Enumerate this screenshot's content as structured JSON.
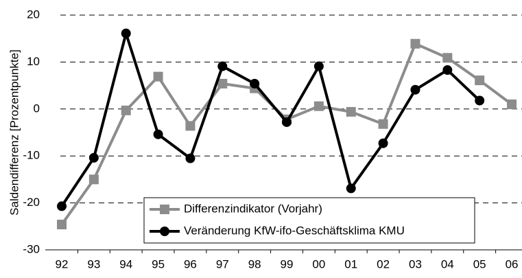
{
  "chart_data": {
    "type": "line",
    "y_label": "Saldendifferenz [Prozentpunkte]",
    "categories": [
      "92",
      "93",
      "94",
      "95",
      "96",
      "97",
      "98",
      "99",
      "00",
      "01",
      "02",
      "03",
      "04",
      "05",
      "06"
    ],
    "series": [
      {
        "name": "Differenzindikator (Vorjahr)",
        "color": "#8c8c8c",
        "marker": "square",
        "values": [
          -24.6,
          -15,
          -0.3,
          6.9,
          -3.6,
          5.4,
          4.4,
          -2.2,
          0.6,
          -0.6,
          -3.2,
          13.9,
          10.9,
          6.1,
          1.0
        ]
      },
      {
        "name": "Veränderung KfW-ifo-Geschäftsklima KMU",
        "color": "#000000",
        "marker": "circle",
        "values": [
          -20.7,
          -10.4,
          16.1,
          -5.4,
          -10.5,
          9.1,
          5.4,
          -2.8,
          9.1,
          -16.9,
          -7.3,
          4.1,
          8.3,
          1.8,
          null
        ]
      }
    ],
    "ylim": [
      -30,
      20
    ],
    "yticks": [
      -30,
      -20,
      -10,
      0,
      10,
      20
    ],
    "grid": true
  }
}
